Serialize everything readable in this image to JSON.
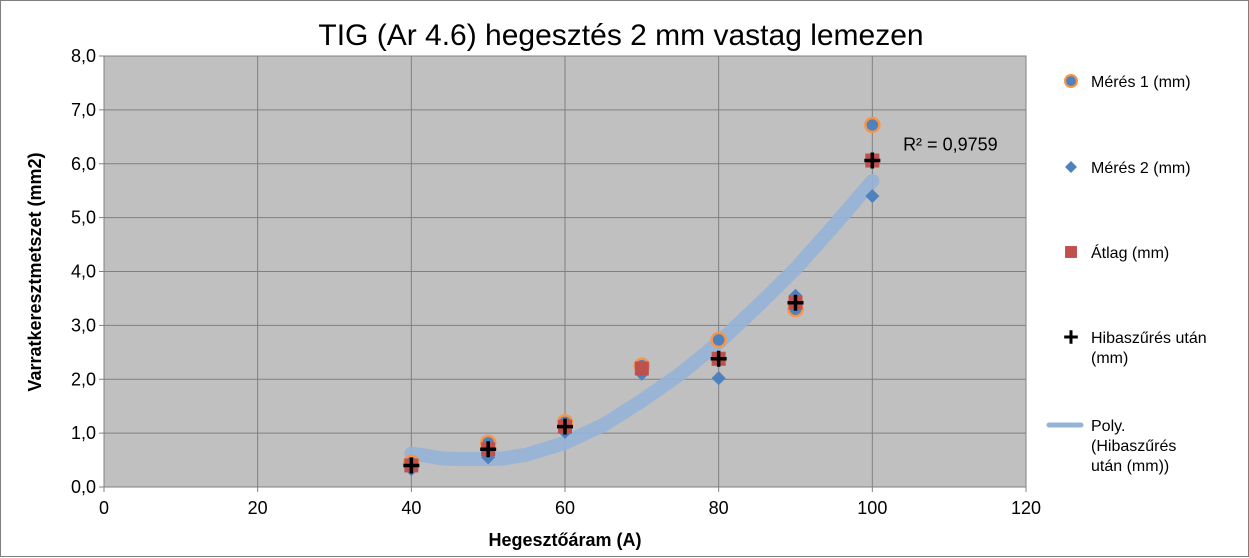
{
  "chart_data": {
    "type": "scatter",
    "title": "TIG (Ar 4.6) hegesztés 2 mm vastag  lemezen",
    "xlabel": "Hegesztőáram (A)",
    "ylabel": "Varratkeresztmetszet (mm2)",
    "xlim": [
      0,
      120
    ],
    "ylim": [
      0,
      8
    ],
    "x_ticks": [
      0,
      20,
      40,
      60,
      80,
      100,
      120
    ],
    "x_tick_labels": [
      "0",
      "20",
      "40",
      "60",
      "80",
      "100",
      "120"
    ],
    "y_ticks": [
      0,
      1,
      2,
      3,
      4,
      5,
      6,
      7,
      8
    ],
    "y_tick_labels": [
      "0,0",
      "1,0",
      "2,0",
      "3,0",
      "4,0",
      "5,0",
      "6,0",
      "7,0",
      "8,0"
    ],
    "grid": true,
    "legend_position": "right",
    "series": [
      {
        "name": "Mérés 1 (mm)",
        "marker": "circle",
        "color": "#4f81bd",
        "edge_color": "#f79646",
        "x": [
          40,
          50,
          60,
          70,
          80,
          90,
          100
        ],
        "y": [
          0.45,
          0.82,
          1.2,
          2.25,
          2.73,
          3.3,
          6.72
        ]
      },
      {
        "name": "Mérés 2 (mm)",
        "marker": "diamond",
        "color": "#4f81bd",
        "x": [
          40,
          50,
          60,
          70,
          80,
          90,
          100
        ],
        "y": [
          0.33,
          0.55,
          1.02,
          2.1,
          2.02,
          3.55,
          5.4
        ]
      },
      {
        "name": "Átlag (mm)",
        "marker": "square",
        "color": "#c0504d",
        "x": [
          40,
          50,
          60,
          70,
          80,
          90,
          100
        ],
        "y": [
          0.4,
          0.7,
          1.12,
          2.2,
          2.38,
          3.42,
          6.06
        ]
      },
      {
        "name": "Hibaszűrés után (mm)",
        "legend_lines": [
          "Hibaszűrés után",
          "(mm)"
        ],
        "marker": "plus",
        "color": "#000000",
        "x": [
          40,
          50,
          60,
          80,
          90,
          100
        ],
        "y": [
          0.4,
          0.7,
          1.12,
          2.38,
          3.42,
          6.06
        ]
      }
    ],
    "trendline": {
      "name": "Poly. (Hibaszűrés után (mm))",
      "legend_lines": [
        "Poly.",
        "(Hibaszűrés",
        "után (mm))"
      ],
      "type": "polynomial",
      "color": "#95b3d7",
      "x": [
        40,
        42,
        44,
        46,
        48,
        50,
        52,
        55,
        60,
        65,
        70,
        75,
        80,
        85,
        90,
        95,
        100
      ],
      "y": [
        0.62,
        0.58,
        0.53,
        0.52,
        0.52,
        0.52,
        0.53,
        0.6,
        0.82,
        1.15,
        1.6,
        2.1,
        2.68,
        3.35,
        4.05,
        4.85,
        5.68
      ]
    },
    "annotations": [
      {
        "text": "R² = 0,9759",
        "x": 104,
        "y": 6.25
      }
    ]
  }
}
